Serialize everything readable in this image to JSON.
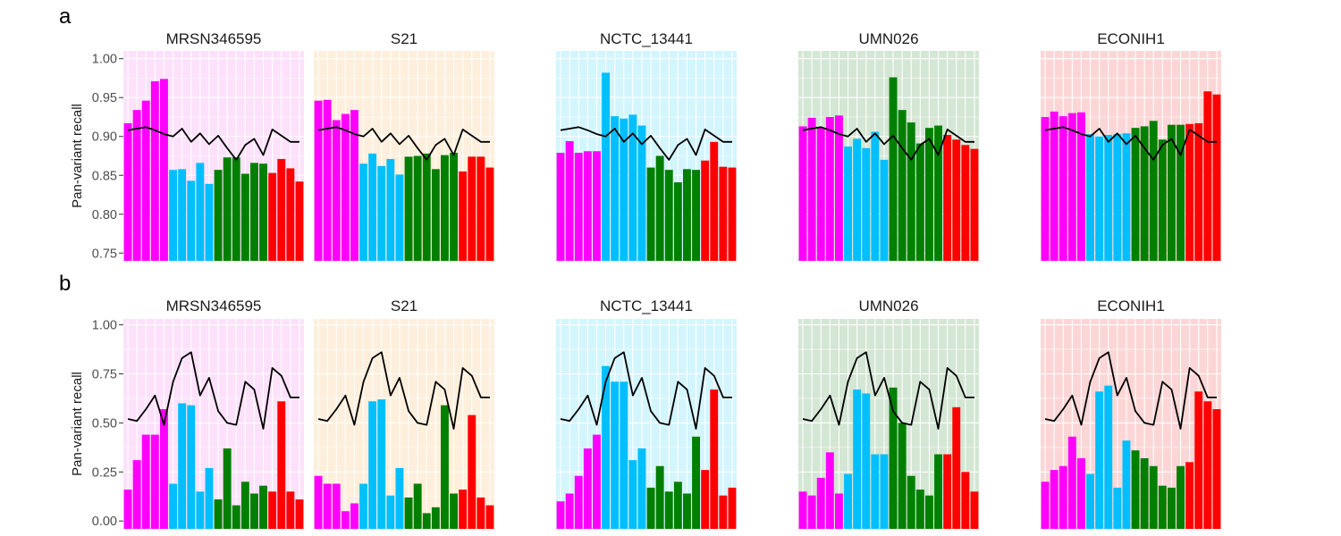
{
  "figure": {
    "panel_letters": [
      "a",
      "b"
    ]
  },
  "chart_data": [
    {
      "type": "bar",
      "panel": "a",
      "ylabel": "Pan-variant recall",
      "ylim": [
        0.74,
        1.01
      ],
      "yticks": [
        0.75,
        0.8,
        0.85,
        0.9,
        0.95,
        1.0
      ],
      "ytick_labels": [
        "0.75",
        "0.80",
        "0.85",
        "0.90",
        "0.95",
        "1.00"
      ],
      "grid": true,
      "bar_colors": [
        "#ff00ff",
        "#ff00ff",
        "#ff00ff",
        "#ff00ff",
        "#ff00ff",
        "#00bfff",
        "#00bfff",
        "#00bfff",
        "#00bfff",
        "#00bfff",
        "#007f00",
        "#007f00",
        "#007f00",
        "#007f00",
        "#007f00",
        "#007f00",
        "#ff0000",
        "#ff0000",
        "#ff0000",
        "#ff0000"
      ],
      "line_color": "#000000",
      "facets": [
        {
          "title": "MRSN346595",
          "background": "#fde1fb",
          "values": [
            0.917,
            0.934,
            0.946,
            0.971,
            0.974,
            0.857,
            0.858,
            0.843,
            0.866,
            0.839,
            0.857,
            0.873,
            0.873,
            0.852,
            0.866,
            0.865,
            0.853,
            0.871,
            0.859,
            0.842
          ],
          "line": [
            0.908,
            0.91,
            0.912,
            0.908,
            0.903,
            0.9,
            0.91,
            0.893,
            0.904,
            0.89,
            0.901,
            0.885,
            0.87,
            0.889,
            0.897,
            0.876,
            0.909,
            0.901,
            0.893,
            0.893
          ]
        },
        {
          "title": "S21",
          "background": "#fdefdb",
          "values": [
            0.946,
            0.947,
            0.921,
            0.929,
            0.934,
            0.865,
            0.878,
            0.862,
            0.871,
            0.851,
            0.874,
            0.875,
            0.878,
            0.858,
            0.876,
            0.879,
            0.855,
            0.874,
            0.874,
            0.86
          ],
          "line": [
            0.908,
            0.91,
            0.912,
            0.908,
            0.903,
            0.9,
            0.91,
            0.893,
            0.904,
            0.89,
            0.901,
            0.885,
            0.87,
            0.889,
            0.897,
            0.876,
            0.909,
            0.901,
            0.893,
            0.893
          ]
        },
        {
          "title": "NCTC_13441",
          "background": "#d3f5fe",
          "values": [
            0.879,
            0.894,
            0.879,
            0.881,
            0.881,
            0.982,
            0.926,
            0.923,
            0.928,
            0.914,
            0.86,
            0.875,
            0.857,
            0.841,
            0.858,
            0.857,
            0.869,
            0.893,
            0.861,
            0.86
          ],
          "line": [
            0.908,
            0.91,
            0.912,
            0.908,
            0.903,
            0.9,
            0.91,
            0.893,
            0.904,
            0.89,
            0.901,
            0.885,
            0.87,
            0.889,
            0.897,
            0.876,
            0.909,
            0.901,
            0.893,
            0.893
          ]
        },
        {
          "title": "UMN026",
          "background": "#d4e6d4",
          "values": [
            0.913,
            0.924,
            0.911,
            0.925,
            0.927,
            0.887,
            0.897,
            0.885,
            0.906,
            0.87,
            0.976,
            0.934,
            0.918,
            0.891,
            0.911,
            0.914,
            0.902,
            0.896,
            0.889,
            0.884
          ],
          "line": [
            0.908,
            0.91,
            0.912,
            0.908,
            0.903,
            0.9,
            0.91,
            0.893,
            0.904,
            0.89,
            0.901,
            0.885,
            0.87,
            0.889,
            0.897,
            0.876,
            0.909,
            0.901,
            0.893,
            0.893
          ]
        },
        {
          "title": "ECONIH1",
          "background": "#fcd6d6",
          "values": [
            0.925,
            0.932,
            0.926,
            0.93,
            0.931,
            0.903,
            0.9,
            0.902,
            0.903,
            0.904,
            0.911,
            0.913,
            0.92,
            0.896,
            0.915,
            0.915,
            0.916,
            0.917,
            0.958,
            0.954
          ],
          "line": [
            0.908,
            0.91,
            0.912,
            0.908,
            0.903,
            0.9,
            0.91,
            0.893,
            0.904,
            0.89,
            0.901,
            0.885,
            0.87,
            0.889,
            0.897,
            0.876,
            0.909,
            0.901,
            0.893,
            0.893
          ]
        }
      ]
    },
    {
      "type": "bar",
      "panel": "b",
      "ylabel": "Pan-variant recall",
      "ylim": [
        -0.04,
        1.03
      ],
      "yticks": [
        0.0,
        0.25,
        0.5,
        0.75,
        1.0
      ],
      "ytick_labels": [
        "0.00",
        "0.25",
        "0.50",
        "0.75",
        "1.00"
      ],
      "grid": true,
      "bar_colors": [
        "#ff00ff",
        "#ff00ff",
        "#ff00ff",
        "#ff00ff",
        "#ff00ff",
        "#00bfff",
        "#00bfff",
        "#00bfff",
        "#00bfff",
        "#00bfff",
        "#007f00",
        "#007f00",
        "#007f00",
        "#007f00",
        "#007f00",
        "#007f00",
        "#ff0000",
        "#ff0000",
        "#ff0000",
        "#ff0000"
      ],
      "line_color": "#000000",
      "facets": [
        {
          "title": "MRSN346595",
          "background": "#fde1fb",
          "values": [
            0.16,
            0.31,
            0.44,
            0.44,
            0.57,
            0.19,
            0.6,
            0.59,
            0.15,
            0.27,
            0.11,
            0.37,
            0.08,
            0.2,
            0.14,
            0.18,
            0.15,
            0.61,
            0.15,
            0.11
          ],
          "line": [
            0.52,
            0.51,
            0.57,
            0.64,
            0.49,
            0.71,
            0.83,
            0.86,
            0.64,
            0.73,
            0.56,
            0.5,
            0.49,
            0.71,
            0.67,
            0.47,
            0.78,
            0.74,
            0.63,
            0.63
          ]
        },
        {
          "title": "S21",
          "background": "#fdefdb",
          "values": [
            0.23,
            0.19,
            0.19,
            0.05,
            0.09,
            0.19,
            0.61,
            0.62,
            0.13,
            0.27,
            0.12,
            0.19,
            0.04,
            0.07,
            0.59,
            0.14,
            0.16,
            0.54,
            0.12,
            0.08
          ],
          "line": [
            0.52,
            0.51,
            0.57,
            0.64,
            0.49,
            0.71,
            0.83,
            0.86,
            0.64,
            0.73,
            0.56,
            0.5,
            0.49,
            0.71,
            0.67,
            0.47,
            0.78,
            0.74,
            0.63,
            0.63
          ]
        },
        {
          "title": "NCTC_13441",
          "background": "#d3f5fe",
          "values": [
            0.1,
            0.14,
            0.23,
            0.37,
            0.44,
            0.79,
            0.71,
            0.71,
            0.31,
            0.37,
            0.17,
            0.28,
            0.15,
            0.2,
            0.14,
            0.43,
            0.26,
            0.67,
            0.13,
            0.17
          ],
          "line": [
            0.52,
            0.51,
            0.57,
            0.64,
            0.49,
            0.71,
            0.83,
            0.86,
            0.64,
            0.73,
            0.56,
            0.5,
            0.49,
            0.71,
            0.67,
            0.47,
            0.78,
            0.74,
            0.63,
            0.63
          ]
        },
        {
          "title": "UMN026",
          "background": "#d4e6d4",
          "values": [
            0.15,
            0.13,
            0.22,
            0.35,
            0.14,
            0.24,
            0.67,
            0.65,
            0.34,
            0.34,
            0.68,
            0.5,
            0.23,
            0.16,
            0.13,
            0.34,
            0.34,
            0.58,
            0.25,
            0.15
          ],
          "line": [
            0.52,
            0.51,
            0.57,
            0.64,
            0.49,
            0.71,
            0.83,
            0.86,
            0.64,
            0.73,
            0.56,
            0.5,
            0.49,
            0.71,
            0.67,
            0.47,
            0.78,
            0.74,
            0.63,
            0.63
          ]
        },
        {
          "title": "ECONIH1",
          "background": "#fcd6d6",
          "values": [
            0.2,
            0.26,
            0.28,
            0.43,
            0.32,
            0.24,
            0.66,
            0.69,
            0.17,
            0.41,
            0.36,
            0.32,
            0.28,
            0.18,
            0.17,
            0.28,
            0.3,
            0.66,
            0.61,
            0.57
          ],
          "line": [
            0.52,
            0.51,
            0.57,
            0.64,
            0.49,
            0.71,
            0.83,
            0.86,
            0.64,
            0.73,
            0.56,
            0.5,
            0.49,
            0.71,
            0.67,
            0.47,
            0.78,
            0.74,
            0.63,
            0.63
          ]
        }
      ]
    }
  ]
}
